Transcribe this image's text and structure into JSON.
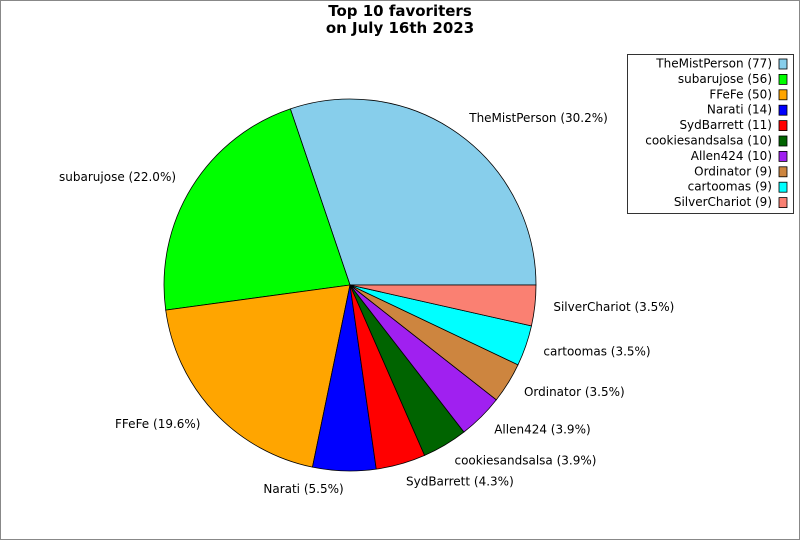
{
  "chart_data": {
    "type": "pie",
    "title": "Top 10 favoriters\non July 16th 2023",
    "values": [
      77,
      56,
      50,
      14,
      11,
      10,
      10,
      9,
      9,
      9
    ],
    "labels": [
      "TheMistPerson (30.2%)",
      "subarujose (22.0%)",
      "FFeFe (19.6%)",
      "Narati (5.5%)",
      "SydBarrett (4.3%)",
      "cookiesandsalsa (3.9%)",
      "Allen424 (3.9%)",
      "Ordinator (3.5%)",
      "cartoomas (3.5%)",
      "SilverChariot (3.5%)"
    ],
    "legend_labels": [
      "TheMistPerson (77)",
      "subarujose (56)",
      "FFeFe (50)",
      "Narati (14)",
      "SydBarrett (11)",
      "cookiesandsalsa (10)",
      "Allen424 (10)",
      "Ordinator (9)",
      "cartoomas (9)",
      "SilverChariot (9)"
    ],
    "colors": [
      "#87ceeb",
      "#00ff00",
      "#ffa500",
      "#0000ff",
      "#ff0000",
      "#006400",
      "#a020f0",
      "#cd853f",
      "#00ffff",
      "#fa8072"
    ],
    "legend_position": "upper right"
  }
}
